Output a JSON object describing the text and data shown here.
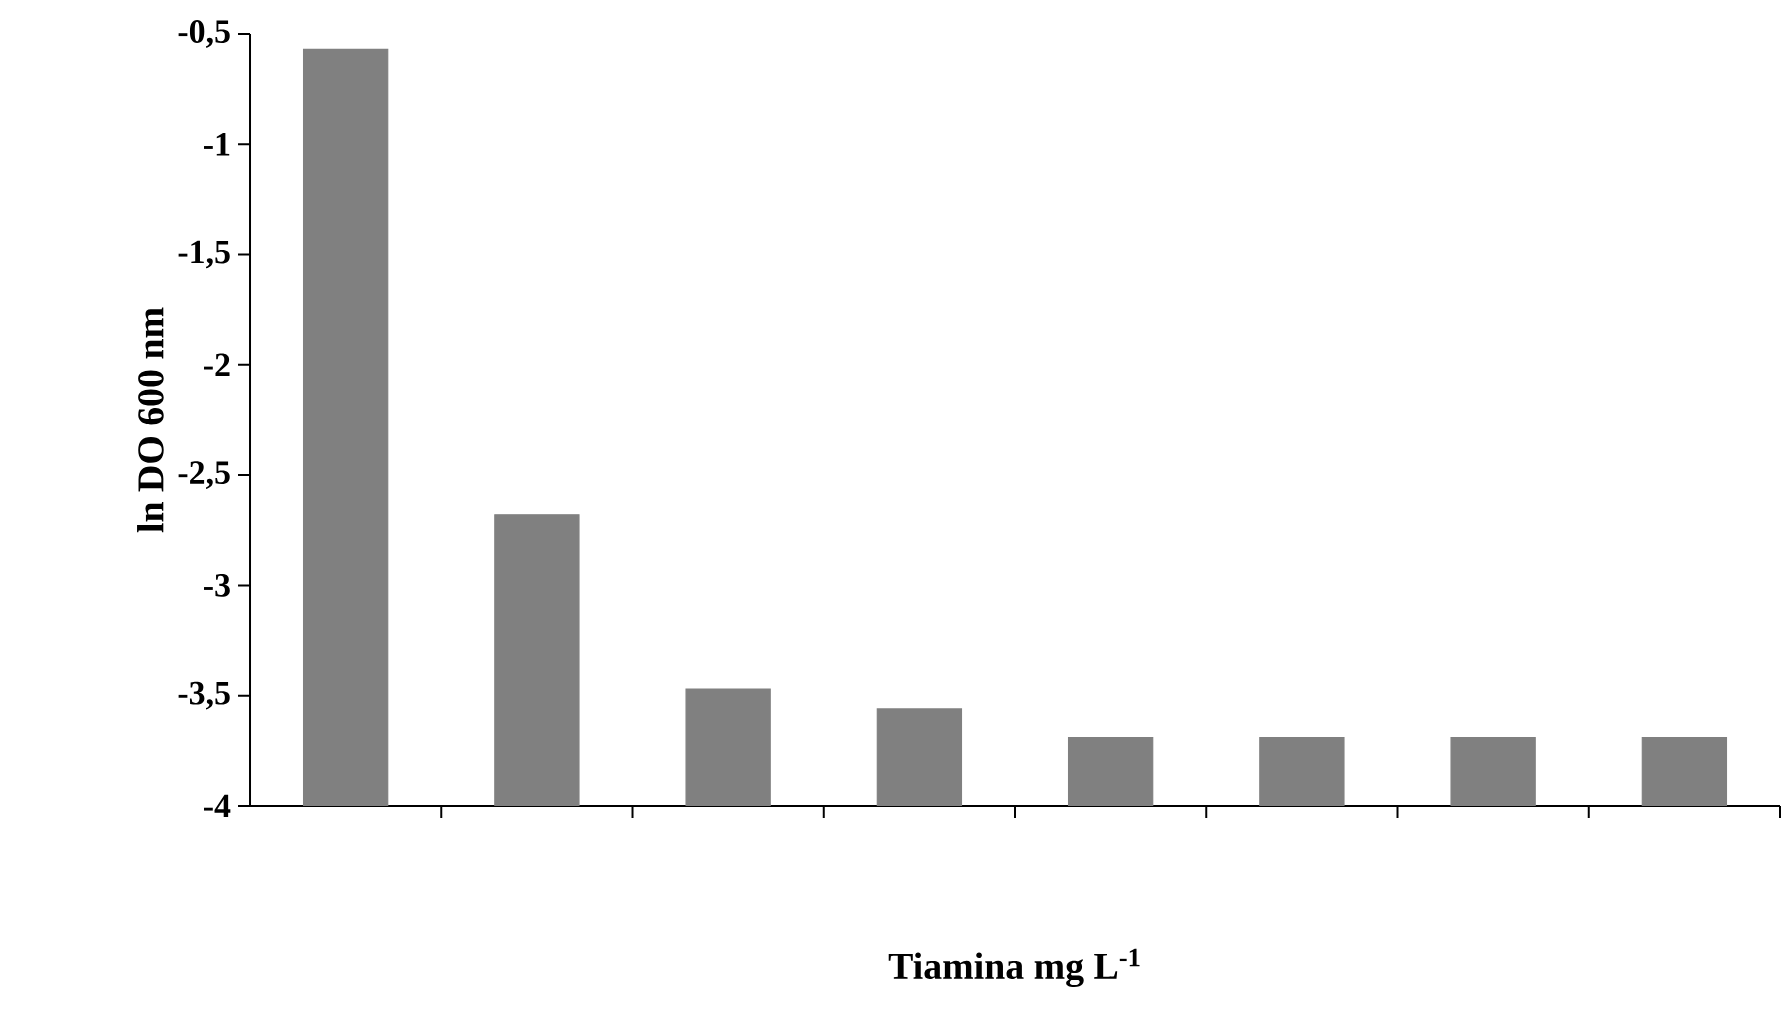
{
  "chart_data": {
    "type": "bar",
    "xlabel": "Tiamina mg L$^{-1}$",
    "ylabel": "ln DO 600 nm",
    "categories": [
      null,
      null,
      null,
      null,
      null,
      null,
      null,
      null
    ],
    "base": [
      -4,
      -4,
      -4,
      -4,
      -4,
      -4,
      -4,
      -4
    ],
    "values": [
      3.43,
      1.32,
      0.53,
      0.44,
      0.31,
      0.31,
      0.31,
      0.31
    ],
    "color": "#808080",
    "ylim": [
      -4,
      -0.5
    ],
    "yticks": [
      {
        "value": -4,
        "label": "-4"
      },
      {
        "value": -3.5,
        "label": "-3,5"
      },
      {
        "value": -3,
        "label": "-3"
      },
      {
        "value": -2.5,
        "label": "-2,5"
      },
      {
        "value": -2,
        "label": "-2"
      },
      {
        "value": -1.5,
        "label": "-1,5"
      },
      {
        "value": -1,
        "label": "-1"
      },
      {
        "value": -0.5,
        "label": "-0,5"
      }
    ],
    "grid": false
  }
}
